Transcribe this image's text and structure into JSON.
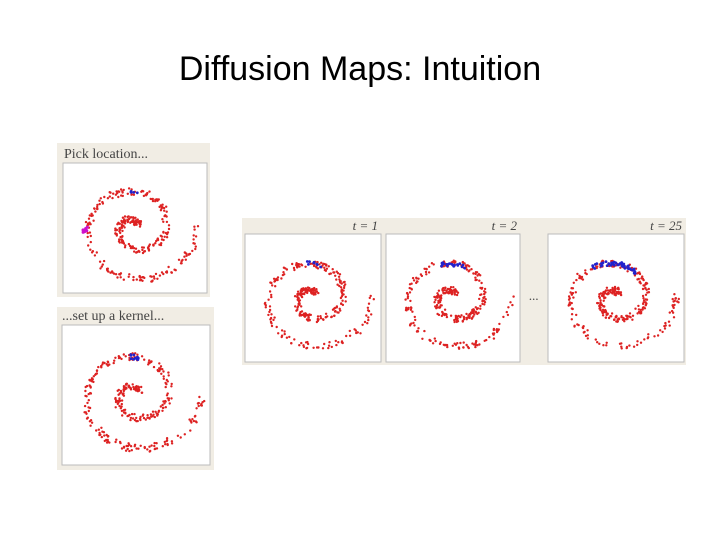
{
  "title": "Diffusion Maps: Intuition",
  "panels": [
    {
      "label": "Pick location..."
    },
    {
      "label": "...set up a kernel..."
    }
  ],
  "steps": {
    "items": [
      {
        "label": "t = 1"
      },
      {
        "label": "t = 2"
      },
      {
        "label": "t = 25"
      }
    ],
    "ellipsis": "..."
  }
}
